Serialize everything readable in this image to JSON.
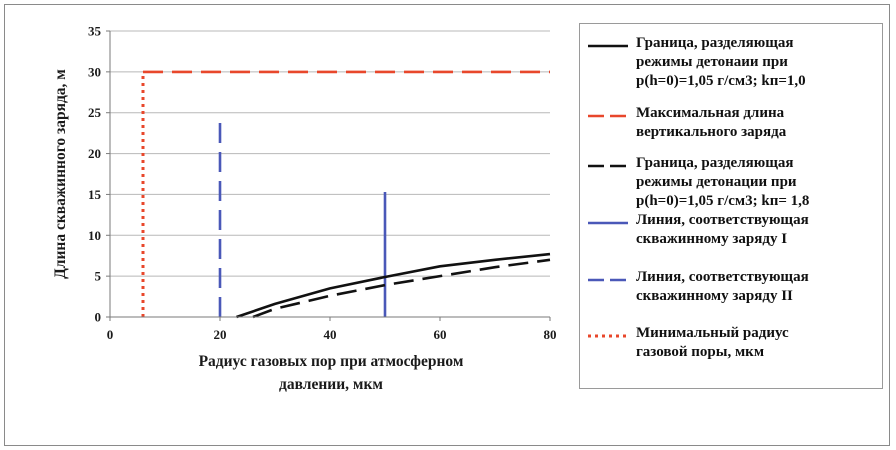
{
  "chart_data": {
    "type": "line",
    "xlabel": [
      "Радиус газовых пор при атмосферном",
      "давлении, мкм"
    ],
    "ylabel": "Длина скважинного заряда, м",
    "xlim": [
      0,
      80
    ],
    "ylim": [
      0,
      35
    ],
    "x_ticks": [
      "0",
      "20",
      "40",
      "60",
      "80"
    ],
    "y_ticks": [
      "0",
      "5",
      "10",
      "15",
      "20",
      "25",
      "30",
      "35"
    ],
    "grid": "horizontal",
    "legend_position": "right",
    "series": [
      {
        "name": [
          "Граница, разделяющая",
          "режимы детонаии при",
          "р(h=0)=1,05 г/см3;  kп=1,0"
        ],
        "style": "solid",
        "color": "#111111",
        "points": [
          [
            23,
            0
          ],
          [
            30,
            1.6
          ],
          [
            40,
            3.5
          ],
          [
            50,
            4.9
          ],
          [
            60,
            6.2
          ],
          [
            70,
            7.0
          ],
          [
            80,
            7.7
          ]
        ]
      },
      {
        "name": [
          "Максимальная длина",
          "вертикального заряда"
        ],
        "style": "dashed",
        "color": "#e8472b",
        "points": [
          [
            6,
            30
          ],
          [
            80,
            30
          ]
        ]
      },
      {
        "name": [
          "Граница, разделяющая",
          "режимы детонации при",
          "р(h=0)=1,05 г/см3;  kп= 1,8"
        ],
        "style": "dashed",
        "color": "#111111",
        "points": [
          [
            26,
            0
          ],
          [
            30,
            1.0
          ],
          [
            40,
            2.6
          ],
          [
            50,
            3.9
          ],
          [
            60,
            5.0
          ],
          [
            70,
            6.1
          ],
          [
            80,
            7.0
          ]
        ]
      },
      {
        "name": [
          "Линия, соответствующая",
          "скважинному заряду I"
        ],
        "style": "solid",
        "color": "#4a58b8",
        "points": [
          [
            50,
            0
          ],
          [
            50,
            15.3
          ]
        ]
      },
      {
        "name": [
          "Линия, соответствующая",
          "скважинному заряду II"
        ],
        "style": "dashed",
        "color": "#4a58b8",
        "points": [
          [
            20,
            0
          ],
          [
            20,
            24
          ]
        ]
      },
      {
        "name": [
          "Минимальный радиус",
          "газовой поры, мкм"
        ],
        "style": "dotted",
        "color": "#e8472b",
        "points": [
          [
            6,
            0
          ],
          [
            6,
            30
          ]
        ]
      }
    ]
  }
}
